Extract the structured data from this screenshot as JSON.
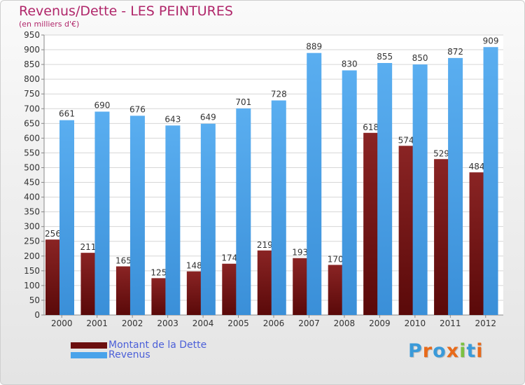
{
  "header": {
    "title": "Revenus/Dette - LES PEINTURES",
    "unit": "(en milliers d'€)"
  },
  "chart_data": {
    "type": "bar",
    "title": "Revenus/Dette - LES PEINTURES",
    "ylabel": "(en milliers d'€)",
    "xlabel": "",
    "categories": [
      "2000",
      "2001",
      "2002",
      "2003",
      "2004",
      "2005",
      "2006",
      "2007",
      "2008",
      "2009",
      "2010",
      "2011",
      "2012"
    ],
    "series": [
      {
        "name": "Montant de la Dette",
        "color": "#7a1a1a",
        "values": [
          256,
          211,
          165,
          125,
          148,
          174,
          219,
          193,
          170,
          618,
          574,
          529,
          484
        ]
      },
      {
        "name": "Revenus",
        "color": "#4aa3ea",
        "values": [
          661,
          690,
          676,
          643,
          649,
          701,
          728,
          889,
          830,
          855,
          850,
          872,
          909
        ]
      }
    ],
    "ylim": [
      0,
      950
    ],
    "yticks": [
      0,
      50,
      100,
      150,
      200,
      250,
      300,
      350,
      400,
      450,
      500,
      550,
      600,
      650,
      700,
      750,
      800,
      850,
      900,
      950
    ],
    "grid": true,
    "legend_position": "bottom-left"
  },
  "legend": {
    "items": [
      {
        "label": "Montant de la Dette",
        "color": "#6b0f0f"
      },
      {
        "label": "Revenus",
        "color": "#4aa3ea"
      }
    ]
  },
  "logo": {
    "letters": [
      "P",
      "r",
      "o",
      "x",
      "i",
      "t",
      "i"
    ],
    "colors": [
      "#3a9ad9",
      "#e86a1a",
      "#3a9ad9",
      "#e86a1a",
      "#7cc142",
      "#3a9ad9",
      "#e86a1a"
    ]
  }
}
